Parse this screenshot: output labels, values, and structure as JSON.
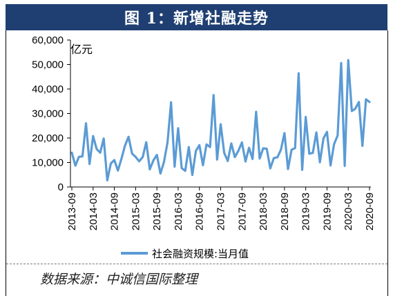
{
  "title": "图 1：新增社融走势",
  "source": "数据来源：中诚信国际整理",
  "colors": {
    "title_bg": "#1f3f72",
    "series": "#5b9bd5"
  },
  "chart_data": {
    "type": "line",
    "unit_label": "亿元",
    "ylim": [
      0,
      60000
    ],
    "yticks": [
      "0",
      "10,000",
      "20,000",
      "30,000",
      "40,000",
      "50,000",
      "60,000"
    ],
    "xticks": [
      "2013-09",
      "2014-03",
      "2014-09",
      "2015-03",
      "2015-09",
      "2016-03",
      "2016-09",
      "2017-03",
      "2017-09",
      "2018-03",
      "2018-09",
      "2019-03",
      "2019-09",
      "2020-03",
      "2020-09"
    ],
    "grid": false,
    "legend_position": "bottom",
    "series": [
      {
        "name": "社会融资规模:当月值",
        "x": [
          "2013-09",
          "2013-10",
          "2013-11",
          "2013-12",
          "2014-01",
          "2014-02",
          "2014-03",
          "2014-04",
          "2014-05",
          "2014-06",
          "2014-07",
          "2014-08",
          "2014-09",
          "2014-10",
          "2014-11",
          "2014-12",
          "2015-01",
          "2015-02",
          "2015-03",
          "2015-04",
          "2015-05",
          "2015-06",
          "2015-07",
          "2015-08",
          "2015-09",
          "2015-10",
          "2015-11",
          "2015-12",
          "2016-01",
          "2016-02",
          "2016-03",
          "2016-04",
          "2016-05",
          "2016-06",
          "2016-07",
          "2016-08",
          "2016-09",
          "2016-10",
          "2016-11",
          "2016-12",
          "2017-01",
          "2017-02",
          "2017-03",
          "2017-04",
          "2017-05",
          "2017-06",
          "2017-07",
          "2017-08",
          "2017-09",
          "2017-10",
          "2017-11",
          "2017-12",
          "2018-01",
          "2018-02",
          "2018-03",
          "2018-04",
          "2018-05",
          "2018-06",
          "2018-07",
          "2018-08",
          "2018-09",
          "2018-10",
          "2018-11",
          "2018-12",
          "2019-01",
          "2019-02",
          "2019-03",
          "2019-04",
          "2019-05",
          "2019-06",
          "2019-07",
          "2019-08",
          "2019-09",
          "2019-10",
          "2019-11",
          "2019-12",
          "2020-01",
          "2020-02",
          "2020-03",
          "2020-04",
          "2020-05",
          "2020-06",
          "2020-07",
          "2020-08",
          "2020-09"
        ],
        "values": [
          14000,
          8700,
          12300,
          12500,
          26000,
          9400,
          20800,
          15500,
          14000,
          19800,
          2700,
          9600,
          11000,
          6700,
          11500,
          16900,
          20500,
          13600,
          12300,
          10500,
          12200,
          18300,
          7200,
          10800,
          13100,
          5500,
          10200,
          18200,
          34600,
          8300,
          24000,
          7700,
          6600,
          16300,
          4900,
          14700,
          17100,
          8900,
          17400,
          16300,
          37500,
          11200,
          25600,
          13900,
          10600,
          17800,
          12200,
          14800,
          18200,
          10400,
          16000,
          11400,
          30700,
          11600,
          15800,
          15600,
          7600,
          11800,
          12100,
          15200,
          22000,
          7300,
          15200,
          15900,
          46400,
          7000,
          28600,
          13600,
          13900,
          22300,
          10100,
          19800,
          22500,
          8800,
          17500,
          21000,
          50600,
          8600,
          51800,
          31000,
          32000,
          34700,
          16800,
          35800,
          34700
        ]
      }
    ]
  }
}
